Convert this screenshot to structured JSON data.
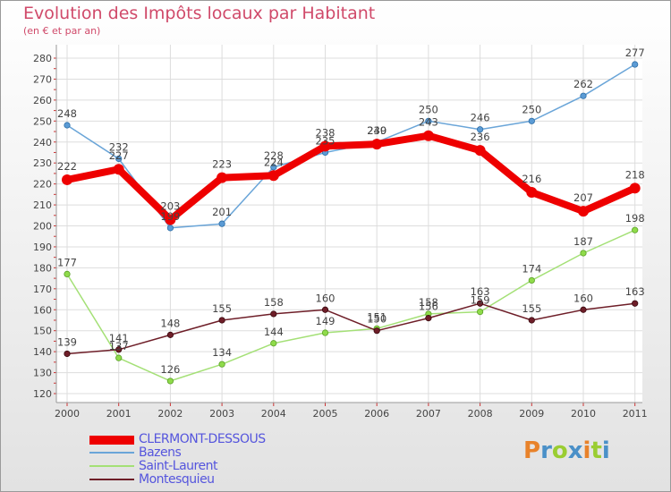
{
  "chart_data": {
    "type": "line",
    "title": "Evolution des Impôts locaux par Habitant",
    "subtitle": "(en € et par an)",
    "categories": [
      "2000",
      "2001",
      "2002",
      "2003",
      "2004",
      "2005",
      "2006",
      "2007",
      "2008",
      "2009",
      "2010",
      "2011"
    ],
    "ylim": [
      120,
      280
    ],
    "yticks": [
      120,
      130,
      140,
      150,
      160,
      170,
      180,
      190,
      200,
      210,
      220,
      230,
      240,
      250,
      260,
      270,
      280
    ],
    "grid": true,
    "legend_position": "bottom-left",
    "series": [
      {
        "name": "CLERMONT-DESSOUS",
        "color": "#ee0000",
        "values": [
          222,
          227,
          203,
          223,
          224,
          238,
          239,
          243,
          236,
          216,
          207,
          218
        ]
      },
      {
        "name": "Bazens",
        "color": "#6aa5d8",
        "values": [
          248,
          232,
          199,
          201,
          228,
          235,
          240,
          250,
          246,
          250,
          262,
          277
        ]
      },
      {
        "name": "Saint-Laurent",
        "color": "#a4e076",
        "values": [
          177,
          137,
          126,
          134,
          144,
          149,
          151,
          158,
          159,
          174,
          187,
          198
        ]
      },
      {
        "name": "Montesquieu",
        "color": "#6e1e28",
        "values": [
          139,
          141,
          148,
          155,
          158,
          160,
          150,
          156,
          163,
          155,
          160,
          163
        ]
      }
    ]
  },
  "logo": {
    "letters": [
      "P",
      "r",
      "o",
      "x",
      "i",
      "t",
      "i"
    ]
  }
}
